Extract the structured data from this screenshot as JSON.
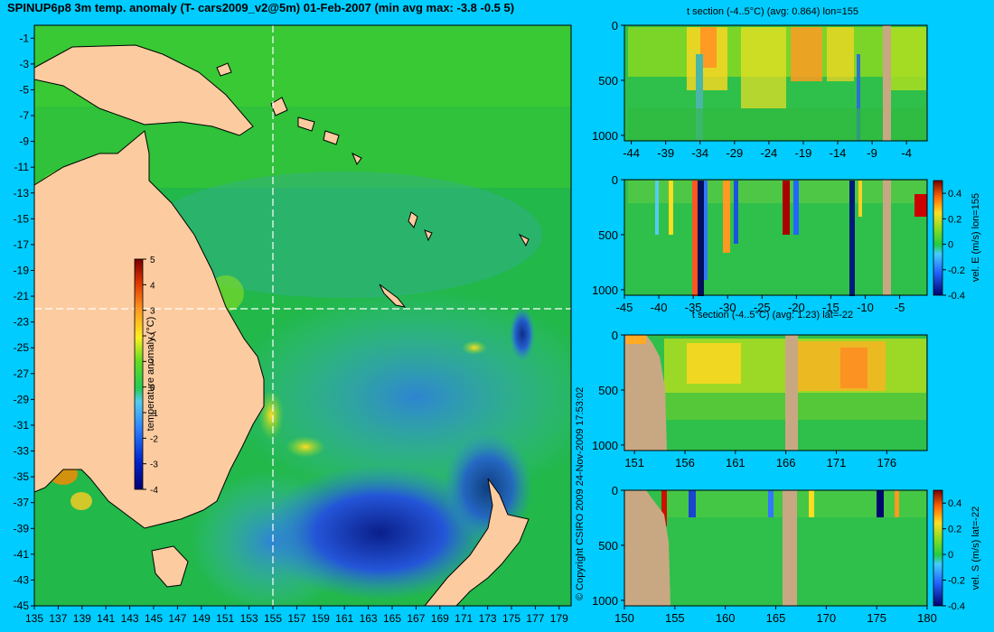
{
  "title": "SPINUP6p8 3m temp. anomaly (T- cars2009_v2@5m) 01-Feb-2007 (min avg max: -3.8 -0.5 5)",
  "copyright": "© Copyright CSIRO 2009   24-Nov-2009 17:53:02",
  "colors": {
    "background": "#00ccff",
    "land": "#fccca0",
    "section_land": "#c8a882"
  },
  "chart_data": [
    {
      "type": "heatmap",
      "name": "map",
      "x": {
        "range": [
          135,
          180
        ],
        "ticks": [
          135,
          137,
          139,
          141,
          143,
          145,
          147,
          149,
          151,
          153,
          155,
          157,
          159,
          161,
          163,
          165,
          167,
          169,
          171,
          173,
          175,
          177,
          179
        ]
      },
      "y": {
        "range": [
          -45,
          0
        ],
        "ticks": [
          -1,
          -3,
          -5,
          -7,
          -9,
          -11,
          -13,
          -15,
          -17,
          -19,
          -21,
          -23,
          -25,
          -27,
          -29,
          -31,
          -33,
          -35,
          -37,
          -39,
          -41,
          -43,
          -45
        ]
      },
      "section_lines": {
        "lon": 155,
        "lat": -22
      },
      "colorbar": {
        "label": "temperature anomaly (°C)",
        "range": [
          -4,
          5
        ],
        "ticks": [
          5,
          4,
          3,
          2,
          1,
          0,
          -1,
          -2,
          -3,
          -4
        ]
      }
    },
    {
      "type": "heatmap",
      "name": "panel1",
      "title": "t section (-4..5°C) (avg: 0.864) lon=155",
      "x_ticks": [
        -44,
        -39,
        -34,
        -29,
        -24,
        -19,
        -14,
        -9,
        -4
      ],
      "x_range": [
        -45,
        -1
      ],
      "y_ticks": [
        0,
        500,
        1000
      ],
      "y_range": [
        0,
        1050
      ]
    },
    {
      "type": "heatmap",
      "name": "panel2",
      "title": "",
      "x_ticks": [
        -45,
        -40,
        -35,
        -30,
        -25,
        -20,
        -15,
        -10,
        -5
      ],
      "x_range": [
        -45,
        -1
      ],
      "y_ticks": [
        0,
        500,
        1000
      ],
      "y_range": [
        0,
        1050
      ],
      "colorbar": {
        "label": "vel. E (m/s) lon=155",
        "range": [
          -0.4,
          0.5
        ],
        "ticks": [
          "0.4",
          "0.2",
          "0",
          "-0.2",
          "-0.4"
        ]
      }
    },
    {
      "type": "heatmap",
      "name": "panel3",
      "title": "t section (-4..5°C) (avg: 1.23) lat=-22",
      "x_ticks": [
        151,
        156,
        161,
        166,
        171,
        176
      ],
      "x_range": [
        150,
        180
      ],
      "y_ticks": [
        0,
        500,
        1000
      ],
      "y_range": [
        0,
        1050
      ]
    },
    {
      "type": "heatmap",
      "name": "panel4",
      "title": "",
      "x_ticks": [
        150,
        155,
        160,
        165,
        170,
        175,
        180
      ],
      "x_range": [
        150,
        180
      ],
      "y_ticks": [
        0,
        500,
        1000
      ],
      "y_range": [
        0,
        1050
      ],
      "colorbar": {
        "label": "vel. S (m/s) lat=-22",
        "range": [
          -0.4,
          0.5
        ],
        "ticks": [
          "0.4",
          "0.2",
          "0",
          "-0.2",
          "-0.4"
        ]
      }
    }
  ]
}
